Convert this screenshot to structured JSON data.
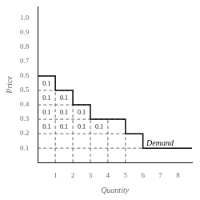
{
  "chart_data": {
    "type": "line",
    "xlabel": "Quantity",
    "ylabel": "Price",
    "x": [
      0,
      1,
      1,
      2,
      2,
      3,
      3,
      5,
      5,
      6,
      6,
      8.8
    ],
    "values": [
      0.6,
      0.6,
      0.5,
      0.5,
      0.4,
      0.4,
      0.3,
      0.3,
      0.2,
      0.2,
      0.1,
      0.1
    ],
    "color": "#000000",
    "xlim": [
      0,
      8.8
    ],
    "ylim": [
      0,
      1.08
    ],
    "xticks": [
      1,
      2,
      3,
      4,
      5,
      6,
      7,
      8
    ],
    "yticks": [
      0.1,
      0.2,
      0.3,
      0.4,
      0.5,
      0.6,
      0.7,
      0.8,
      0.9,
      {
        "value": 1,
        "label": "1.0"
      }
    ],
    "grid": false,
    "curve_label": {
      "text": "Demand",
      "x": 6.2,
      "y": 0.13
    },
    "annotations": [
      {
        "text": "0.1",
        "x": 0.5,
        "y": 0.545
      },
      {
        "text": "0.1",
        "x": 0.5,
        "y": 0.445
      },
      {
        "text": "0.1",
        "x": 1.5,
        "y": 0.445
      },
      {
        "text": "0.1",
        "x": 0.5,
        "y": 0.345
      },
      {
        "text": "0.1",
        "x": 1.5,
        "y": 0.345
      },
      {
        "text": "0.1",
        "x": 2.5,
        "y": 0.345
      },
      {
        "text": "0.1",
        "x": 0.5,
        "y": 0.245
      },
      {
        "text": "0.1",
        "x": 1.5,
        "y": 0.245
      },
      {
        "text": "0.1",
        "x": 2.5,
        "y": 0.245
      },
      {
        "text": "0.1",
        "x": 3.5,
        "y": 0.245
      }
    ],
    "dashed_lines": {
      "color": "#666666",
      "line_style": "dashed",
      "lines": [
        {
          "x": [
            0,
            2
          ],
          "y": [
            0.5,
            0.5
          ]
        },
        {
          "x": [
            0,
            3
          ],
          "y": [
            0.4,
            0.4
          ]
        },
        {
          "x": [
            0,
            5
          ],
          "y": [
            0.3,
            0.3
          ]
        },
        {
          "x": [
            0,
            6
          ],
          "y": [
            0.2,
            0.2
          ]
        },
        {
          "x": [
            0,
            6
          ],
          "y": [
            0.1,
            0.1
          ]
        },
        {
          "x": [
            1,
            1
          ],
          "y": [
            0,
            0.5
          ]
        },
        {
          "x": [
            2,
            2
          ],
          "y": [
            0,
            0.4
          ]
        },
        {
          "x": [
            3,
            3
          ],
          "y": [
            0,
            0.3
          ]
        },
        {
          "x": [
            4,
            4
          ],
          "y": [
            0,
            0.3
          ]
        },
        {
          "x": [
            5,
            5
          ],
          "y": [
            0,
            0.2
          ]
        }
      ]
    }
  }
}
